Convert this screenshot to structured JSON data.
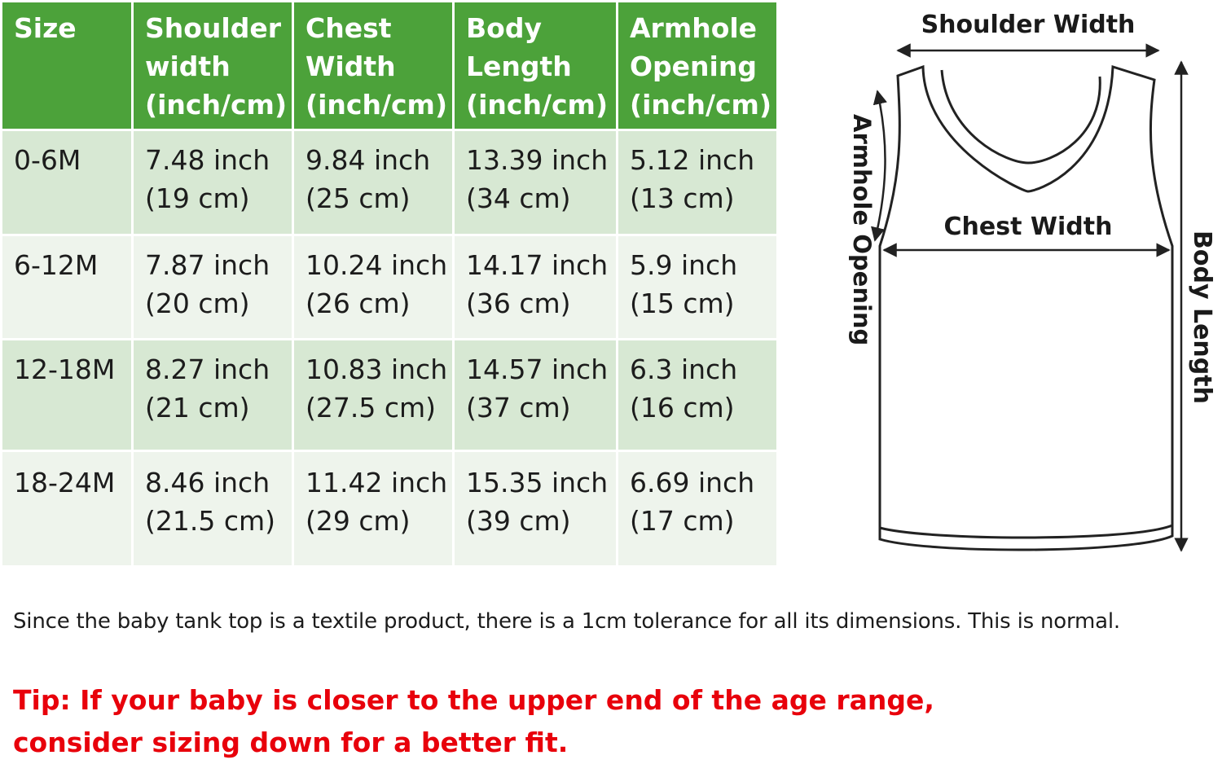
{
  "table": {
    "headers": [
      [
        "Size"
      ],
      [
        "Shoulder",
        "width",
        "(inch/cm)"
      ],
      [
        "Chest",
        "Width",
        "(inch/cm)"
      ],
      [
        "Body",
        "Length",
        "(inch/cm)"
      ],
      [
        "Armhole",
        "Opening",
        "(inch/cm)"
      ]
    ],
    "rows": [
      [
        [
          "0-6M"
        ],
        [
          "7.48 inch",
          "(19 cm)"
        ],
        [
          "9.84 inch",
          "(25 cm)"
        ],
        [
          "13.39 inch",
          "(34 cm)"
        ],
        [
          "5.12 inch",
          "(13 cm)"
        ]
      ],
      [
        [
          "6-12M"
        ],
        [
          "7.87 inch",
          "(20 cm)"
        ],
        [
          "10.24 inch",
          "(26 cm)"
        ],
        [
          "14.17 inch",
          "(36 cm)"
        ],
        [
          "5.9 inch",
          "(15 cm)"
        ]
      ],
      [
        [
          "12-18M"
        ],
        [
          "8.27 inch",
          "(21 cm)"
        ],
        [
          "10.83 inch",
          "(27.5 cm)"
        ],
        [
          "14.57 inch",
          "(37 cm)"
        ],
        [
          "6.3 inch",
          "(16 cm)"
        ]
      ],
      [
        [
          "18-24M"
        ],
        [
          "8.46 inch",
          "(21.5 cm)"
        ],
        [
          "11.42 inch",
          "(29 cm)"
        ],
        [
          "15.35 inch",
          "(39 cm)"
        ],
        [
          "6.69 inch",
          "(17 cm)"
        ]
      ]
    ]
  },
  "diagram": {
    "shoulder_width_label": "Shoulder Width",
    "chest_width_label": "Chest Width",
    "armhole_opening_label": "Armhole Opening",
    "body_length_label": "Body Length"
  },
  "note": "Since the baby tank top is a textile product, there is a 1cm tolerance for all its dimensions. This is normal.",
  "tip": {
    "line1": "Tip: If your baby is closer to the upper end of the age range,",
    "line2": "consider sizing down for a better fit."
  },
  "colors": {
    "header_green": "#4ca23a",
    "row_odd": "#d7e8d3",
    "row_even": "#eef4ec",
    "tip_red": "#e8000b"
  }
}
